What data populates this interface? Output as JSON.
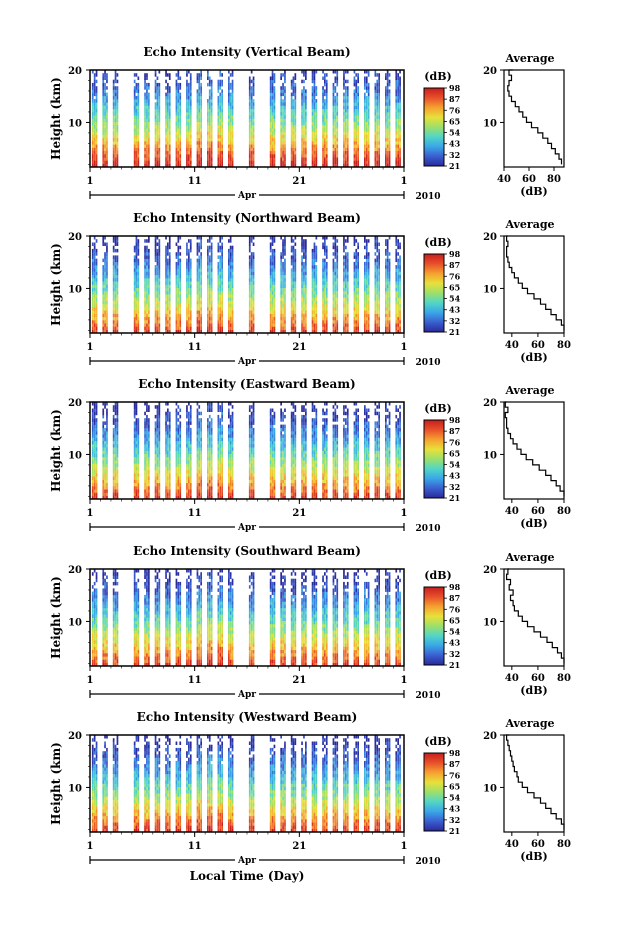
{
  "chart_data": {
    "type": "heatmap",
    "shared": {
      "y_label": "Height (km)",
      "y_ticks": [
        "20",
        "10"
      ],
      "y_range_km": [
        1.5,
        20
      ],
      "x_ticks": [
        "1",
        "11",
        "21",
        "1"
      ],
      "x_range_days": [
        1,
        31
      ],
      "month_label": "Apr",
      "year_label": "2010",
      "x_title": "Local Time (Day)",
      "colorbar_title": "(dB)",
      "colorbar_ticks": [
        "98",
        "87",
        "76",
        "65",
        "54",
        "43",
        "32",
        "21"
      ],
      "colorbar_range_db": [
        21,
        98
      ],
      "colorscale": [
        "#2a2a9a",
        "#3a5fd0",
        "#3aa7e8",
        "#52d6c6",
        "#9de06a",
        "#e8e03a",
        "#f5a030",
        "#e8502a",
        "#c81e1e"
      ],
      "avg_title": "Average",
      "avg_xlabel": "(dB)",
      "data_days_present": [
        1,
        2,
        3,
        5,
        6,
        7,
        8,
        9,
        10,
        11,
        12,
        13,
        14,
        16,
        18,
        19,
        20,
        21,
        22,
        23,
        24,
        25,
        26,
        27,
        28,
        29,
        30
      ]
    },
    "panels": [
      {
        "title": "Echo Intensity (Vertical Beam)",
        "avg_xticks": [
          "40",
          "60",
          "80"
        ],
        "avg_xlim": [
          40,
          88
        ],
        "avg_profile": {
          "height_km": [
            2,
            3,
            4,
            5,
            6,
            7,
            8,
            9,
            10,
            11,
            12,
            13,
            14,
            15,
            16,
            17,
            18,
            19,
            20
          ],
          "db": [
            86,
            84,
            81,
            78,
            75,
            71,
            67,
            62,
            58,
            55,
            52,
            49,
            46,
            44,
            43,
            44,
            46,
            44,
            47
          ]
        }
      },
      {
        "title": "Echo Intensity (Northward Beam)",
        "avg_xticks": [
          "40",
          "60",
          "80"
        ],
        "avg_xlim": [
          34,
          80
        ],
        "avg_profile": {
          "height_km": [
            2,
            3,
            4,
            5,
            6,
            7,
            8,
            9,
            10,
            11,
            12,
            13,
            14,
            15,
            16,
            17,
            18,
            19,
            20
          ],
          "db": [
            80,
            78,
            74,
            70,
            66,
            62,
            57,
            52,
            48,
            45,
            42,
            40,
            38,
            37,
            36,
            36,
            37,
            36,
            37
          ]
        }
      },
      {
        "title": "Echo Intensity (Eastward Beam)",
        "avg_xticks": [
          "40",
          "60",
          "80"
        ],
        "avg_xlim": [
          34,
          80
        ],
        "avg_profile": {
          "height_km": [
            2,
            3,
            4,
            5,
            6,
            7,
            8,
            9,
            10,
            11,
            12,
            13,
            14,
            15,
            16,
            17,
            18,
            19,
            20
          ],
          "db": [
            80,
            77,
            74,
            70,
            66,
            61,
            56,
            51,
            47,
            44,
            41,
            39,
            37,
            36,
            36,
            35,
            37,
            35,
            36
          ]
        }
      },
      {
        "title": "Echo Intensity (Southward Beam)",
        "avg_xticks": [
          "40",
          "60",
          "80"
        ],
        "avg_xlim": [
          34,
          80
        ],
        "avg_profile": {
          "height_km": [
            2,
            3,
            4,
            5,
            6,
            7,
            8,
            9,
            10,
            11,
            12,
            13,
            14,
            15,
            16,
            17,
            18,
            19,
            20
          ],
          "db": [
            80,
            78,
            75,
            71,
            67,
            62,
            57,
            52,
            48,
            45,
            42,
            41,
            39,
            41,
            38,
            39,
            36,
            37,
            38
          ]
        }
      },
      {
        "title": "Echo Intensity (Westward Beam)",
        "avg_xticks": [
          "40",
          "60",
          "80"
        ],
        "avg_xlim": [
          34,
          80
        ],
        "avg_profile": {
          "height_km": [
            2,
            3,
            4,
            5,
            6,
            7,
            8,
            9,
            10,
            11,
            12,
            13,
            14,
            15,
            16,
            17,
            18,
            19,
            20
          ],
          "db": [
            80,
            78,
            74,
            70,
            66,
            62,
            57,
            52,
            48,
            45,
            44,
            42,
            41,
            40,
            39,
            38,
            37,
            36,
            38
          ]
        }
      }
    ]
  }
}
